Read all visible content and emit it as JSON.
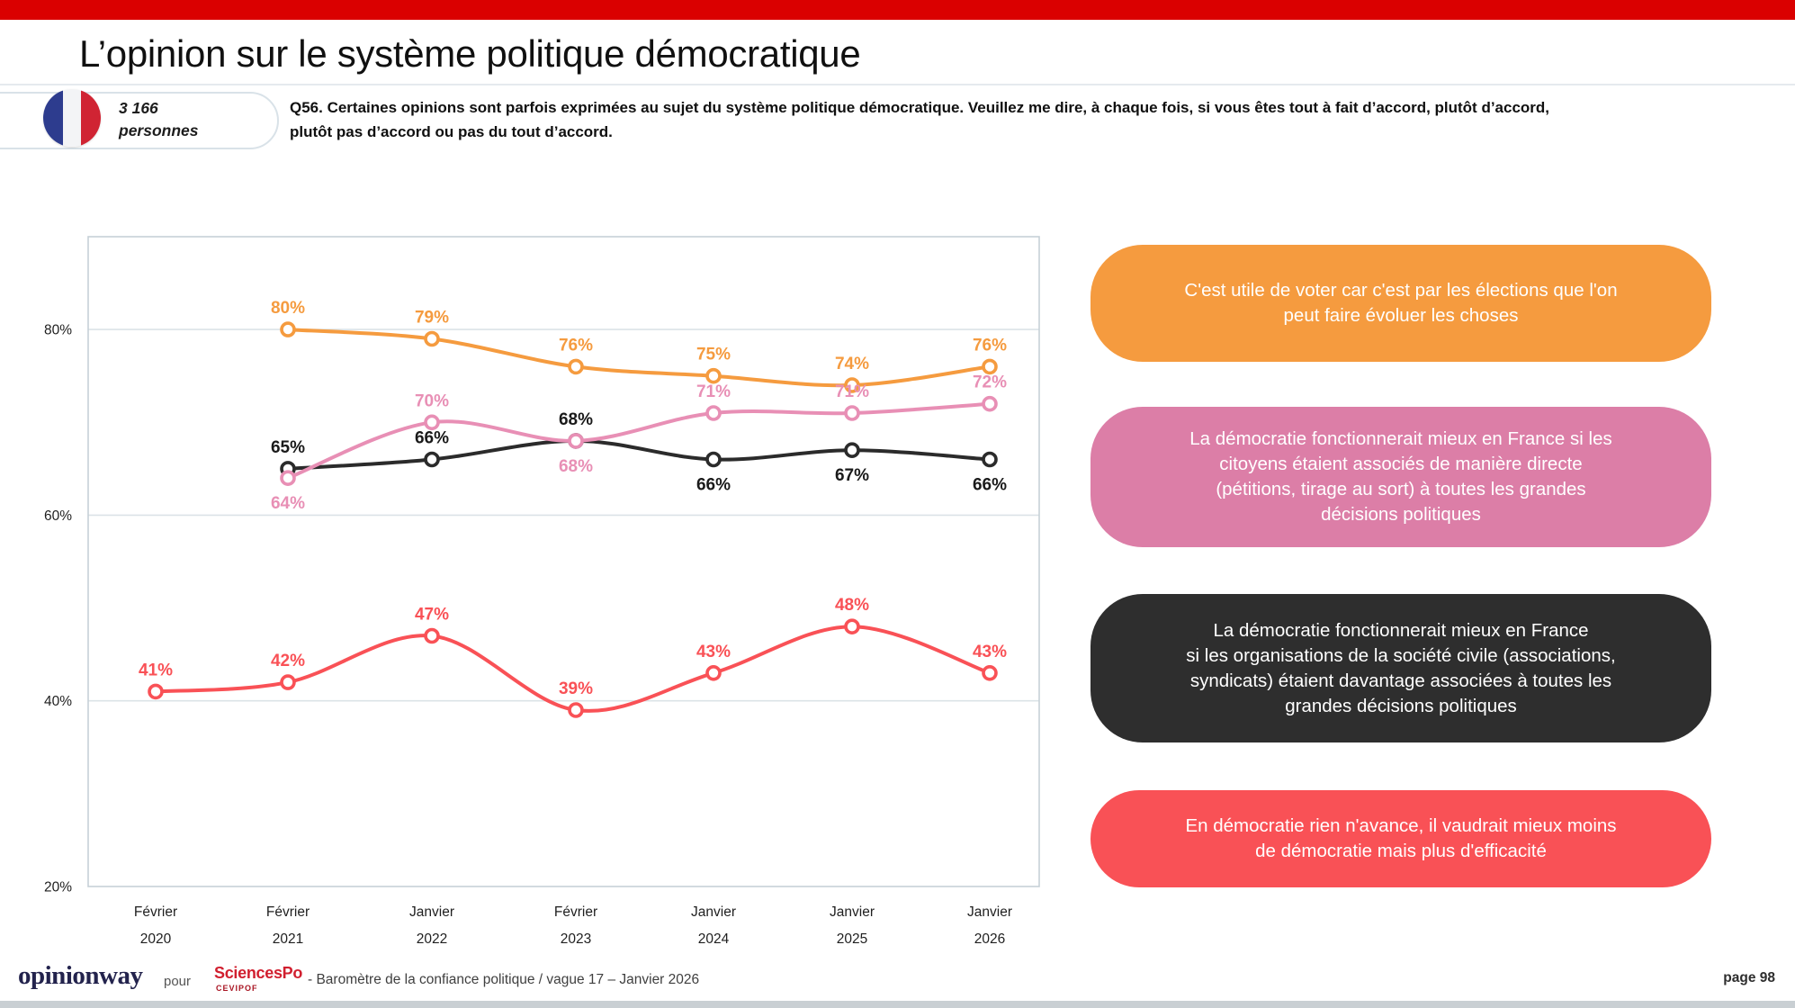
{
  "slide": {
    "title": "L’opinion sur le système politique démocratique",
    "sample": {
      "count": "3 166",
      "unit": "personnes"
    },
    "question": "Q56. Certaines opinions sont parfois exprimées au sujet du système politique démocratique. Veuillez me dire, à chaque fois, si vous êtes tout à fait d’accord, plutôt d’accord,\nplutôt pas d’accord ou pas du tout d’accord."
  },
  "chart_data": {
    "type": "line",
    "categories": [
      "Février 2020",
      "Février 2021",
      "Janvier 2022",
      "Février 2023",
      "Janvier 2024",
      "Janvier 2025",
      "Janvier 2026"
    ],
    "categories_lines": [
      [
        "Février",
        "2020"
      ],
      [
        "Février",
        "2021"
      ],
      [
        "Janvier",
        "2022"
      ],
      [
        "Février",
        "2023"
      ],
      [
        "Janvier",
        "2024"
      ],
      [
        "Janvier",
        "2025"
      ],
      [
        "Janvier",
        "2026"
      ]
    ],
    "ylim": [
      20,
      90
    ],
    "yticks": [
      20,
      40,
      60,
      80
    ],
    "grid": true,
    "legend_position": "right",
    "series": [
      {
        "name": "C'est utile de voter car c'est par les élections que l'on peut faire évoluer les choses",
        "color": "#F59B3F",
        "values": [
          null,
          80,
          79,
          76,
          75,
          74,
          76
        ],
        "label_side": [
          null,
          "above",
          "above",
          "above",
          "above",
          "above",
          "above"
        ]
      },
      {
        "name": "La démocratie fonctionnerait mieux en France si les citoyens étaient associés de manière directe (pétitions, tirage au sort) à toutes les grandes décisions politiques",
        "color": "#E88FB5",
        "values": [
          null,
          64,
          70,
          68,
          71,
          71,
          72
        ],
        "label_side": [
          null,
          "below",
          "above",
          "below",
          "above",
          "above",
          "above"
        ]
      },
      {
        "name": "La démocratie fonctionnerait mieux en France si les organisations de la société civile (associations, syndicats) étaient davantage associées à toutes les grandes décisions politiques",
        "color": "#2B2B2B",
        "values": [
          null,
          65,
          66,
          68,
          66,
          67,
          66
        ],
        "label_side": [
          null,
          "above",
          "above",
          "above",
          "below",
          "below",
          "below"
        ]
      },
      {
        "name": "En démocratie rien n'avance, il vaudrait mieux moins de démocratie mais plus d'efficacité",
        "color": "#F95156",
        "values": [
          41,
          42,
          47,
          39,
          43,
          48,
          43
        ],
        "label_side": [
          "above",
          "above",
          "above",
          "above",
          "above",
          "above",
          "above"
        ]
      }
    ]
  },
  "legend_boxes": [
    {
      "color": "#F59B3F",
      "text": "C'est utile de voter car c'est par les élections que l'on\npeut faire évoluer les choses"
    },
    {
      "color": "#DC7EA7",
      "text": "La démocratie fonctionnerait mieux en France si les\ncitoyens étaient associés de manière directe\n(pétitions, tirage au sort) à toutes les grandes\ndécisions politiques"
    },
    {
      "color": "#2E2E2E",
      "text": "La démocratie fonctionnerait mieux en France\nsi les organisations de la société civile (associations,\nsyndicats) étaient davantage associées à toutes les\ngrandes décisions politiques"
    },
    {
      "color": "#F95156",
      "text": "En démocratie rien n'avance, il vaudrait mieux moins\nde démocratie mais plus d'efficacité"
    }
  ],
  "footer": {
    "brand": "opinionway",
    "pour": "pour",
    "partner": "SciencesPo",
    "partner_sub": "CEVIPOF",
    "caption": "-  Baromètre de la confiance politique / vague 17 – Janvier 2026",
    "page": "page 98"
  }
}
